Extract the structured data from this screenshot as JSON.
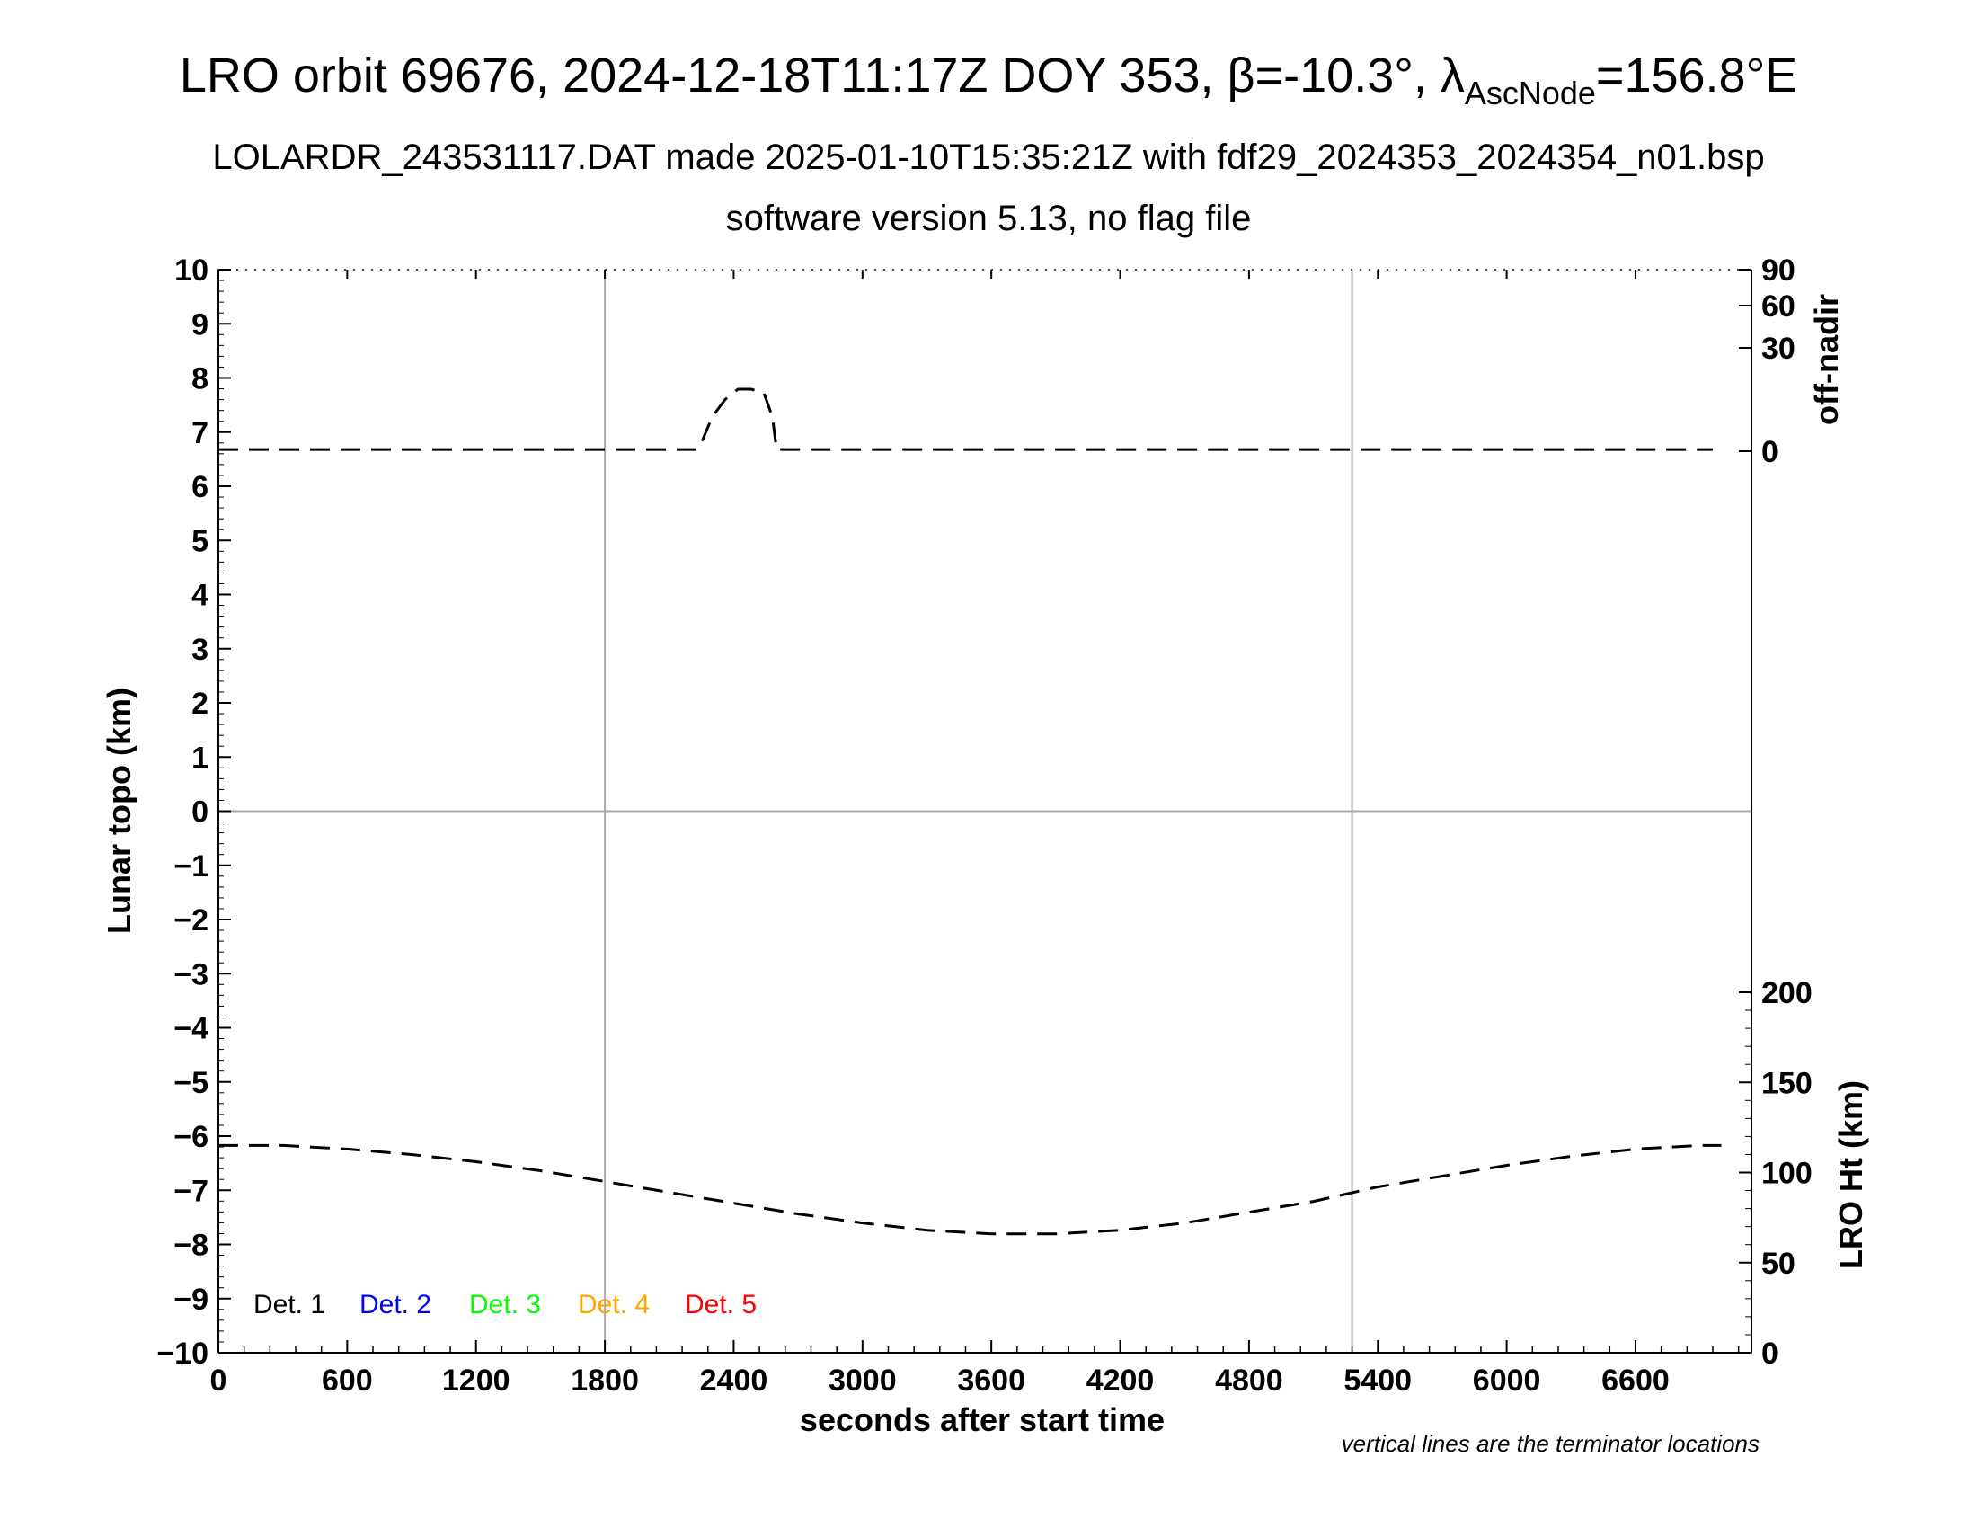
{
  "header": {
    "title_main": "LRO orbit 69676, 2024-12-18T11:17Z DOY 353, ",
    "title_beta": "β=-10.3°, ",
    "title_lambda": "λ",
    "title_sub": "AscNode",
    "title_tail": "=156.8°E",
    "subtitle1": "LOLARDR_243531117.DAT made 2025-01-10T15:35:21Z with fdf29_2024353_2024354_n01.bsp",
    "subtitle2": "software version 5.13, no flag file"
  },
  "footnote": "vertical lines are the terminator locations",
  "chart_data": {
    "type": "line",
    "xlabel": "seconds after start time",
    "ylabel_left": "Lunar topo (km)",
    "ylabel_right_top": "off-nadir",
    "ylabel_right_bottom": "LRO Ht (km)",
    "xlim": [
      0,
      7140
    ],
    "ylim_left": [
      -10,
      10
    ],
    "x_ticks": [
      "0",
      "600",
      "1200",
      "1800",
      "2400",
      "3000",
      "3600",
      "4200",
      "4800",
      "5400",
      "6000",
      "6600"
    ],
    "x_tick_values": [
      0,
      600,
      1200,
      1800,
      2400,
      3000,
      3600,
      4200,
      4800,
      5400,
      6000,
      6600
    ],
    "y_left_ticks": [
      "10",
      "9",
      "8",
      "7",
      "6",
      "5",
      "4",
      "3",
      "2",
      "1",
      "0",
      "−1",
      "−2",
      "−3",
      "−4",
      "−5",
      "−6",
      "−7",
      "−8",
      "−9",
      "−10"
    ],
    "y_left_tick_values": [
      10,
      9,
      8,
      7,
      6,
      5,
      4,
      3,
      2,
      1,
      0,
      -1,
      -2,
      -3,
      -4,
      -5,
      -6,
      -7,
      -8,
      -9,
      -10
    ],
    "off_nadir_ticks": [
      "90",
      "60",
      "30",
      "0"
    ],
    "off_nadir_tick_values": [
      90,
      60,
      30,
      0
    ],
    "lro_ht_ticks": [
      "200",
      "150",
      "100",
      "50",
      "0"
    ],
    "lro_ht_tick_values": [
      200,
      150,
      100,
      50,
      0
    ],
    "terminator_x": [
      1800,
      5280
    ],
    "grid": "terminator verticals and zero line",
    "legend": [
      {
        "label": "Det. 1",
        "color": "#000000"
      },
      {
        "label": "Det. 2",
        "color": "#0000ff"
      },
      {
        "label": "Det. 3",
        "color": "#00ff00"
      },
      {
        "label": "Det. 4",
        "color": "#ffa500"
      },
      {
        "label": "Det. 5",
        "color": "#ff0000"
      }
    ],
    "legend_position": "bottom-left",
    "series": [
      {
        "axis": "off-nadir (deg)",
        "style": "dashed",
        "x": [
          0,
          2230,
          2240,
          2300,
          2360,
          2420,
          2480,
          2540,
          2580,
          2600,
          2740,
          6960
        ],
        "y": [
          0.5,
          0.5,
          1.0,
          10,
          15,
          18,
          18,
          17,
          10,
          0.5,
          0.5,
          0.5
        ]
      },
      {
        "axis": "LRO Ht (km)",
        "style": "dashed",
        "x": [
          0,
          300,
          600,
          900,
          1200,
          1500,
          1800,
          2100,
          2400,
          2700,
          3000,
          3300,
          3600,
          3900,
          4200,
          4500,
          4800,
          5100,
          5400,
          5700,
          6000,
          6300,
          6600,
          6900,
          7000
        ],
        "y": [
          115,
          115,
          113,
          110,
          106,
          101,
          95,
          89,
          83,
          77,
          72,
          68,
          66,
          66,
          68,
          72,
          78,
          84,
          92,
          98,
          104,
          109,
          113,
          115,
          115
        ]
      }
    ]
  }
}
